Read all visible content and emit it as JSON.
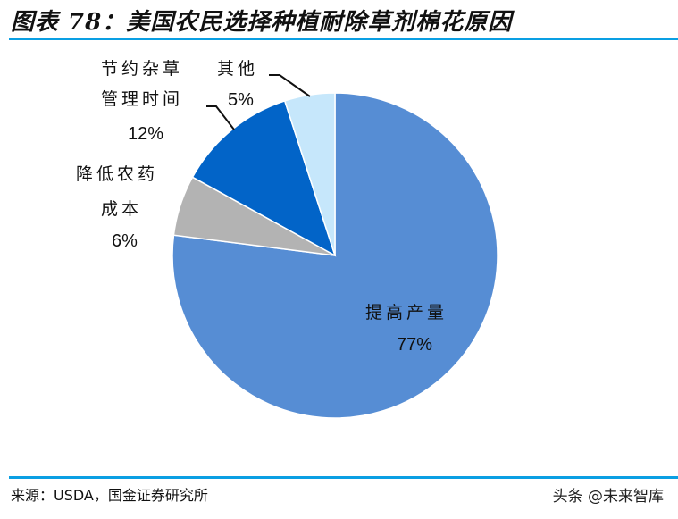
{
  "header": {
    "title": "图表 78：美国农民选择种植耐除草剂棉花原因"
  },
  "footer": {
    "source": "来源：USDA，国金证券研究所",
    "watermark": "头条 @未来智库"
  },
  "labels": {
    "yield_line1": "提高产量",
    "yield_pct": "77%",
    "pesticide_line1": "降低农药",
    "pesticide_line2": "成本",
    "pesticide_pct": "6%",
    "weed_line1": "节约杂草",
    "weed_line2": "管理时间",
    "weed_pct": "12%",
    "other_line1": "其他",
    "other_pct": "5%"
  },
  "colors": {
    "accent_rule": "#0a9fe3",
    "yield": "#568dd4",
    "pesticide": "#b3b3b3",
    "weed": "#0264c8",
    "other": "#c6e7fb"
  },
  "chart_data": {
    "type": "pie",
    "title": "美国农民选择种植耐除草剂棉花原因",
    "categories": [
      "提高产量",
      "降低农药成本",
      "节约杂草管理时间",
      "其他"
    ],
    "values": [
      77,
      6,
      12,
      5
    ],
    "unit": "%",
    "start_angle": "12 o'clock",
    "direction": "clockwise",
    "colors": [
      "#568dd4",
      "#b3b3b3",
      "#0264c8",
      "#c6e7fb"
    ],
    "legend": "none (data labels with leader lines)",
    "source": "USDA，国金证券研究所"
  }
}
